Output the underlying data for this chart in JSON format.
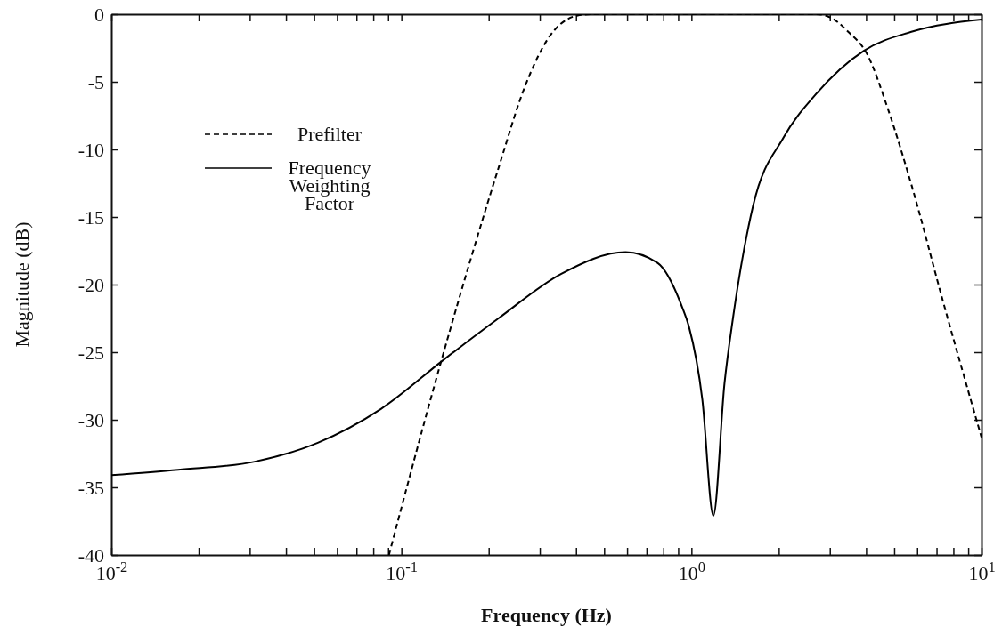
{
  "chart_data": {
    "type": "line",
    "xlabel": "Frequency (Hz)",
    "ylabel": "Magnitude (dB)",
    "log": "x",
    "xlim": [
      0.01,
      10
    ],
    "ylim": [
      -40,
      0
    ],
    "xticks": [
      {
        "value": 0.01,
        "label": "10$^{-2}$"
      },
      {
        "value": 0.02,
        "label": null
      },
      {
        "value": 0.03,
        "label": null
      },
      {
        "value": 0.04,
        "label": null
      },
      {
        "value": 0.05,
        "label": null
      },
      {
        "value": 0.06,
        "label": null
      },
      {
        "value": 0.07,
        "label": null
      },
      {
        "value": 0.08,
        "label": null
      },
      {
        "value": 0.09,
        "label": null
      },
      {
        "value": 0.1,
        "label": "10$^{-1}$"
      },
      {
        "value": 0.2,
        "label": null
      },
      {
        "value": 0.3,
        "label": null
      },
      {
        "value": 0.4,
        "label": null
      },
      {
        "value": 0.5,
        "label": null
      },
      {
        "value": 0.6,
        "label": null
      },
      {
        "value": 0.7,
        "label": null
      },
      {
        "value": 0.8,
        "label": null
      },
      {
        "value": 0.9,
        "label": null
      },
      {
        "value": 1,
        "label": "10$^{0}$"
      },
      {
        "value": 2,
        "label": null
      },
      {
        "value": 3,
        "label": null
      },
      {
        "value": 4,
        "label": null
      },
      {
        "value": 5,
        "label": null
      },
      {
        "value": 6,
        "label": null
      },
      {
        "value": 7,
        "label": null
      },
      {
        "value": 8,
        "label": null
      },
      {
        "value": 9,
        "label": null
      },
      {
        "value": 10,
        "label": "10$^{1}$"
      }
    ],
    "yticks": [
      0,
      -5,
      -10,
      -15,
      -20,
      -25,
      -30,
      -35,
      -40
    ],
    "grid": false,
    "legend": "top left",
    "marker": "none",
    "series": [
      {
        "name": "Prefilter",
        "color": "#000000",
        "line_style": "dashed",
        "x": [
          0.0906,
          0.137,
          0.216,
          0.265,
          0.316,
          0.405,
          0.46,
          1,
          2.69,
          3.05,
          3.47,
          4.02,
          4.79,
          5.73,
          7.38,
          10
        ],
        "values": [
          -40,
          -25.7,
          -11.4,
          -5.5,
          -2.0,
          -0.1,
          0,
          0,
          0,
          -0.3,
          -1.3,
          -2.9,
          -7.2,
          -12.6,
          -21.3,
          -31.3
        ]
      },
      {
        "name": "Frequency Weighting Factor",
        "color": "#000000",
        "line_style": "solid",
        "x": [
          0.01,
          0.017,
          0.0312,
          0.0515,
          0.085,
          0.141,
          0.216,
          0.356,
          0.593,
          0.764,
          0.93,
          0.98,
          1.09,
          1.19,
          1.3,
          1.39,
          1.63,
          2.08,
          2.69,
          3.93,
          5.73,
          10
        ],
        "values": [
          -34.1,
          -33.7,
          -33.1,
          -31.7,
          -29.2,
          -25.5,
          -22.5,
          -19.2,
          -17.6,
          -18.4,
          -21.7,
          -23.1,
          -28.5,
          -37.1,
          -27.3,
          -22.5,
          -14.2,
          -9.1,
          -5.9,
          -2.7,
          -1.3,
          -0.4
        ]
      }
    ]
  }
}
